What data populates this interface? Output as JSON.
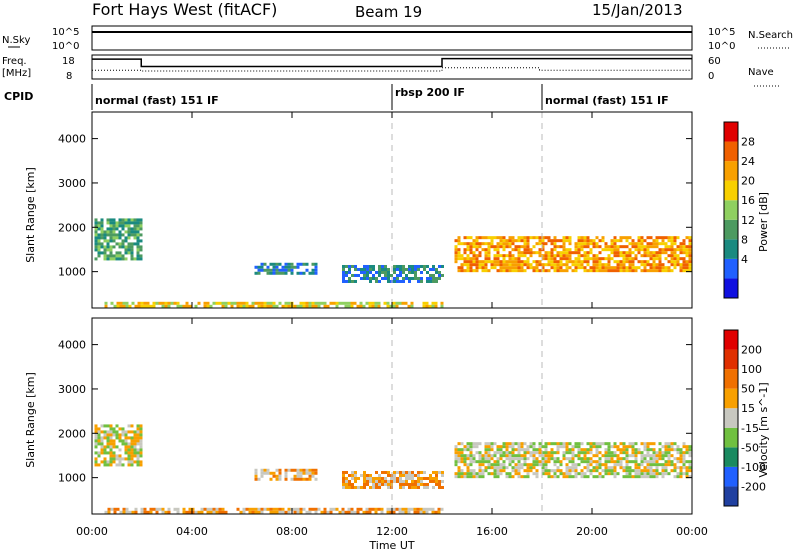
{
  "header": {
    "station": "Fort Hays West (fitACF)",
    "beam": "Beam 19",
    "date": "15/Jan/2013"
  },
  "top_panels": {
    "nsky_label": "N.Sky",
    "nsearch_label": "N.Search",
    "nsky_ticks": [
      "10^5",
      "10^0"
    ],
    "nsearch_ticks": [
      "10^5",
      "10^0"
    ],
    "freq_label_line1": "Freq.",
    "freq_label_line2": "[MHz]",
    "freq_ticks": [
      "18",
      "8"
    ],
    "nave_label": "Nave",
    "nave_ticks": [
      "60",
      "0"
    ],
    "cpid_label": "CPID",
    "cpid_segments": [
      {
        "label": "normal (fast) 151 IF",
        "start_h": 0
      },
      {
        "label": "rbsp 200 IF",
        "start_h": 12
      },
      {
        "label": "normal (fast) 151 IF",
        "start_h": 18
      }
    ]
  },
  "chart_data": [
    {
      "type": "line",
      "name": "frequency",
      "x_unit": "hours UT",
      "x": [
        0,
        1.97,
        1.97,
        14.0,
        14.0,
        24
      ],
      "y": [
        16.3,
        16.3,
        13.2,
        13.2,
        16.5,
        16.5
      ],
      "ylim": [
        8,
        18
      ]
    },
    {
      "type": "line",
      "name": "nave",
      "x": [
        0,
        1.97,
        1.97,
        14.0,
        14.0,
        17.9,
        17.9,
        24
      ],
      "y": [
        22,
        22,
        20,
        20,
        28,
        28,
        22,
        22
      ],
      "ylim": [
        0,
        60
      ]
    },
    {
      "type": "heatmap",
      "title": "Power [dB]",
      "xlabel": "Time UT",
      "ylabel": "Slant Range [km]",
      "xlim_h": [
        0,
        24
      ],
      "ylim_km": [
        180,
        4600
      ],
      "x_ticks": [
        "00:00",
        "04:00",
        "08:00",
        "12:00",
        "16:00",
        "20:00",
        "00:00"
      ],
      "y_ticks": [
        1000,
        2000,
        3000,
        4000
      ],
      "colorbar_ticks": [
        "28",
        "24",
        "20",
        "16",
        "12",
        "8",
        "4"
      ],
      "colorbar_colors": [
        "#1010e0",
        "#2060ff",
        "#1a8a80",
        "#4c9a60",
        "#8fd060",
        "#f8d000",
        "#f8a000",
        "#f06000",
        "#e00000"
      ],
      "regions": [
        {
          "t0": 0.1,
          "t1": 2.0,
          "r0": 1300,
          "r1": 2200,
          "level": 3
        },
        {
          "t0": 6.5,
          "t1": 9.0,
          "r0": 950,
          "r1": 1200,
          "level": 2
        },
        {
          "t0": 10.0,
          "t1": 14.0,
          "r0": 800,
          "r1": 1150,
          "level": 2
        },
        {
          "t0": 14.5,
          "t1": 23.9,
          "r0": 1000,
          "r1": 1800,
          "level": 6
        },
        {
          "t0": 0.5,
          "t1": 14.0,
          "r0": 200,
          "r1": 320,
          "level": 5
        }
      ]
    },
    {
      "type": "heatmap",
      "title": "Velocity [m s^-1]",
      "xlabel": "Time UT",
      "ylabel": "Slant Range [km]",
      "xlim_h": [
        0,
        24
      ],
      "ylim_km": [
        180,
        4600
      ],
      "x_ticks": [
        "00:00",
        "04:00",
        "08:00",
        "12:00",
        "16:00",
        "20:00",
        "00:00"
      ],
      "y_ticks": [
        1000,
        2000,
        3000,
        4000
      ],
      "colorbar_ticks": [
        "200",
        "100",
        "50",
        "15",
        "-15",
        "-50",
        "-100",
        "-200"
      ],
      "colorbar_colors": [
        "#2040a0",
        "#2060ff",
        "#1a8a60",
        "#70c040",
        "#c8c8c0",
        "#f8a000",
        "#f07000",
        "#e03000",
        "#e00000"
      ],
      "regions": [
        {
          "t0": 0.1,
          "t1": 2.0,
          "r0": 1300,
          "r1": 2200,
          "level": 4
        },
        {
          "t0": 6.5,
          "t1": 9.0,
          "r0": 950,
          "r1": 1200,
          "level": 5
        },
        {
          "t0": 10.0,
          "t1": 14.0,
          "r0": 800,
          "r1": 1150,
          "level": 5
        },
        {
          "t0": 14.5,
          "t1": 23.9,
          "r0": 1000,
          "r1": 1800,
          "level": 4
        },
        {
          "t0": 0.5,
          "t1": 14.0,
          "r0": 200,
          "r1": 320,
          "level": 5
        }
      ]
    }
  ]
}
